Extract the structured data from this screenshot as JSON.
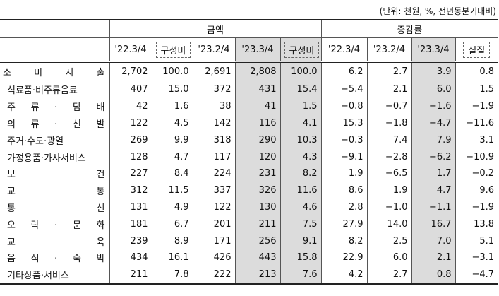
{
  "unit_note": "(단위: 천원, %, 전년동분기대비)",
  "table": {
    "group_headers": [
      "금액",
      "증감률"
    ],
    "columns": [
      "'22.3/4",
      "구성비",
      "'23.2/4",
      "'23.3/4",
      "구성비",
      "'22.3/4",
      "'23.2/4",
      "'23.3/4",
      "실질"
    ],
    "rows": [
      [
        "소 비 지 출",
        "2,702",
        "100.0",
        "2,691",
        "2,808",
        "100.0",
        "6.2",
        "2.7",
        "3.9",
        "0.8"
      ],
      [
        "식료품·비주류음료",
        "407",
        "15.0",
        "372",
        "431",
        "15.4",
        "−5.4",
        "2.1",
        "6.0",
        "1.5"
      ],
      [
        "주 류 · 담 배",
        "42",
        "1.6",
        "38",
        "41",
        "1.5",
        "−0.8",
        "−0.7",
        "−1.6",
        "−1.9"
      ],
      [
        "의 류 · 신 발",
        "122",
        "4.5",
        "142",
        "116",
        "4.1",
        "15.3",
        "−1.8",
        "−4.7",
        "−11.6"
      ],
      [
        "주거·수도·광열",
        "269",
        "9.9",
        "318",
        "290",
        "10.3",
        "−0.3",
        "7.4",
        "7.9",
        "3.1"
      ],
      [
        "가정용품·가사서비스",
        "128",
        "4.7",
        "117",
        "120",
        "4.3",
        "−9.1",
        "−2.8",
        "−6.2",
        "−10.9"
      ],
      [
        "보 건",
        "227",
        "8.4",
        "224",
        "231",
        "8.2",
        "1.9",
        "−6.5",
        "1.7",
        "−0.2"
      ],
      [
        "교 통",
        "312",
        "11.5",
        "337",
        "326",
        "11.6",
        "8.6",
        "1.9",
        "4.7",
        "9.6"
      ],
      [
        "통 신",
        "131",
        "4.9",
        "122",
        "130",
        "4.6",
        "2.8",
        "−1.0",
        "−1.1",
        "−1.9"
      ],
      [
        "오 락 · 문 화",
        "181",
        "6.7",
        "201",
        "211",
        "7.5",
        "27.9",
        "14.0",
        "16.7",
        "13.8"
      ],
      [
        "교 육",
        "239",
        "8.9",
        "171",
        "256",
        "9.1",
        "8.2",
        "2.5",
        "7.0",
        "5.1"
      ],
      [
        "음 식 · 숙 박",
        "434",
        "16.1",
        "426",
        "443",
        "15.8",
        "22.9",
        "6.0",
        "2.1",
        "−3.1"
      ],
      [
        "기타상품·서비스",
        "211",
        "7.8",
        "222",
        "213",
        "7.6",
        "4.2",
        "2.7",
        "0.8",
        "−4.7"
      ]
    ]
  }
}
